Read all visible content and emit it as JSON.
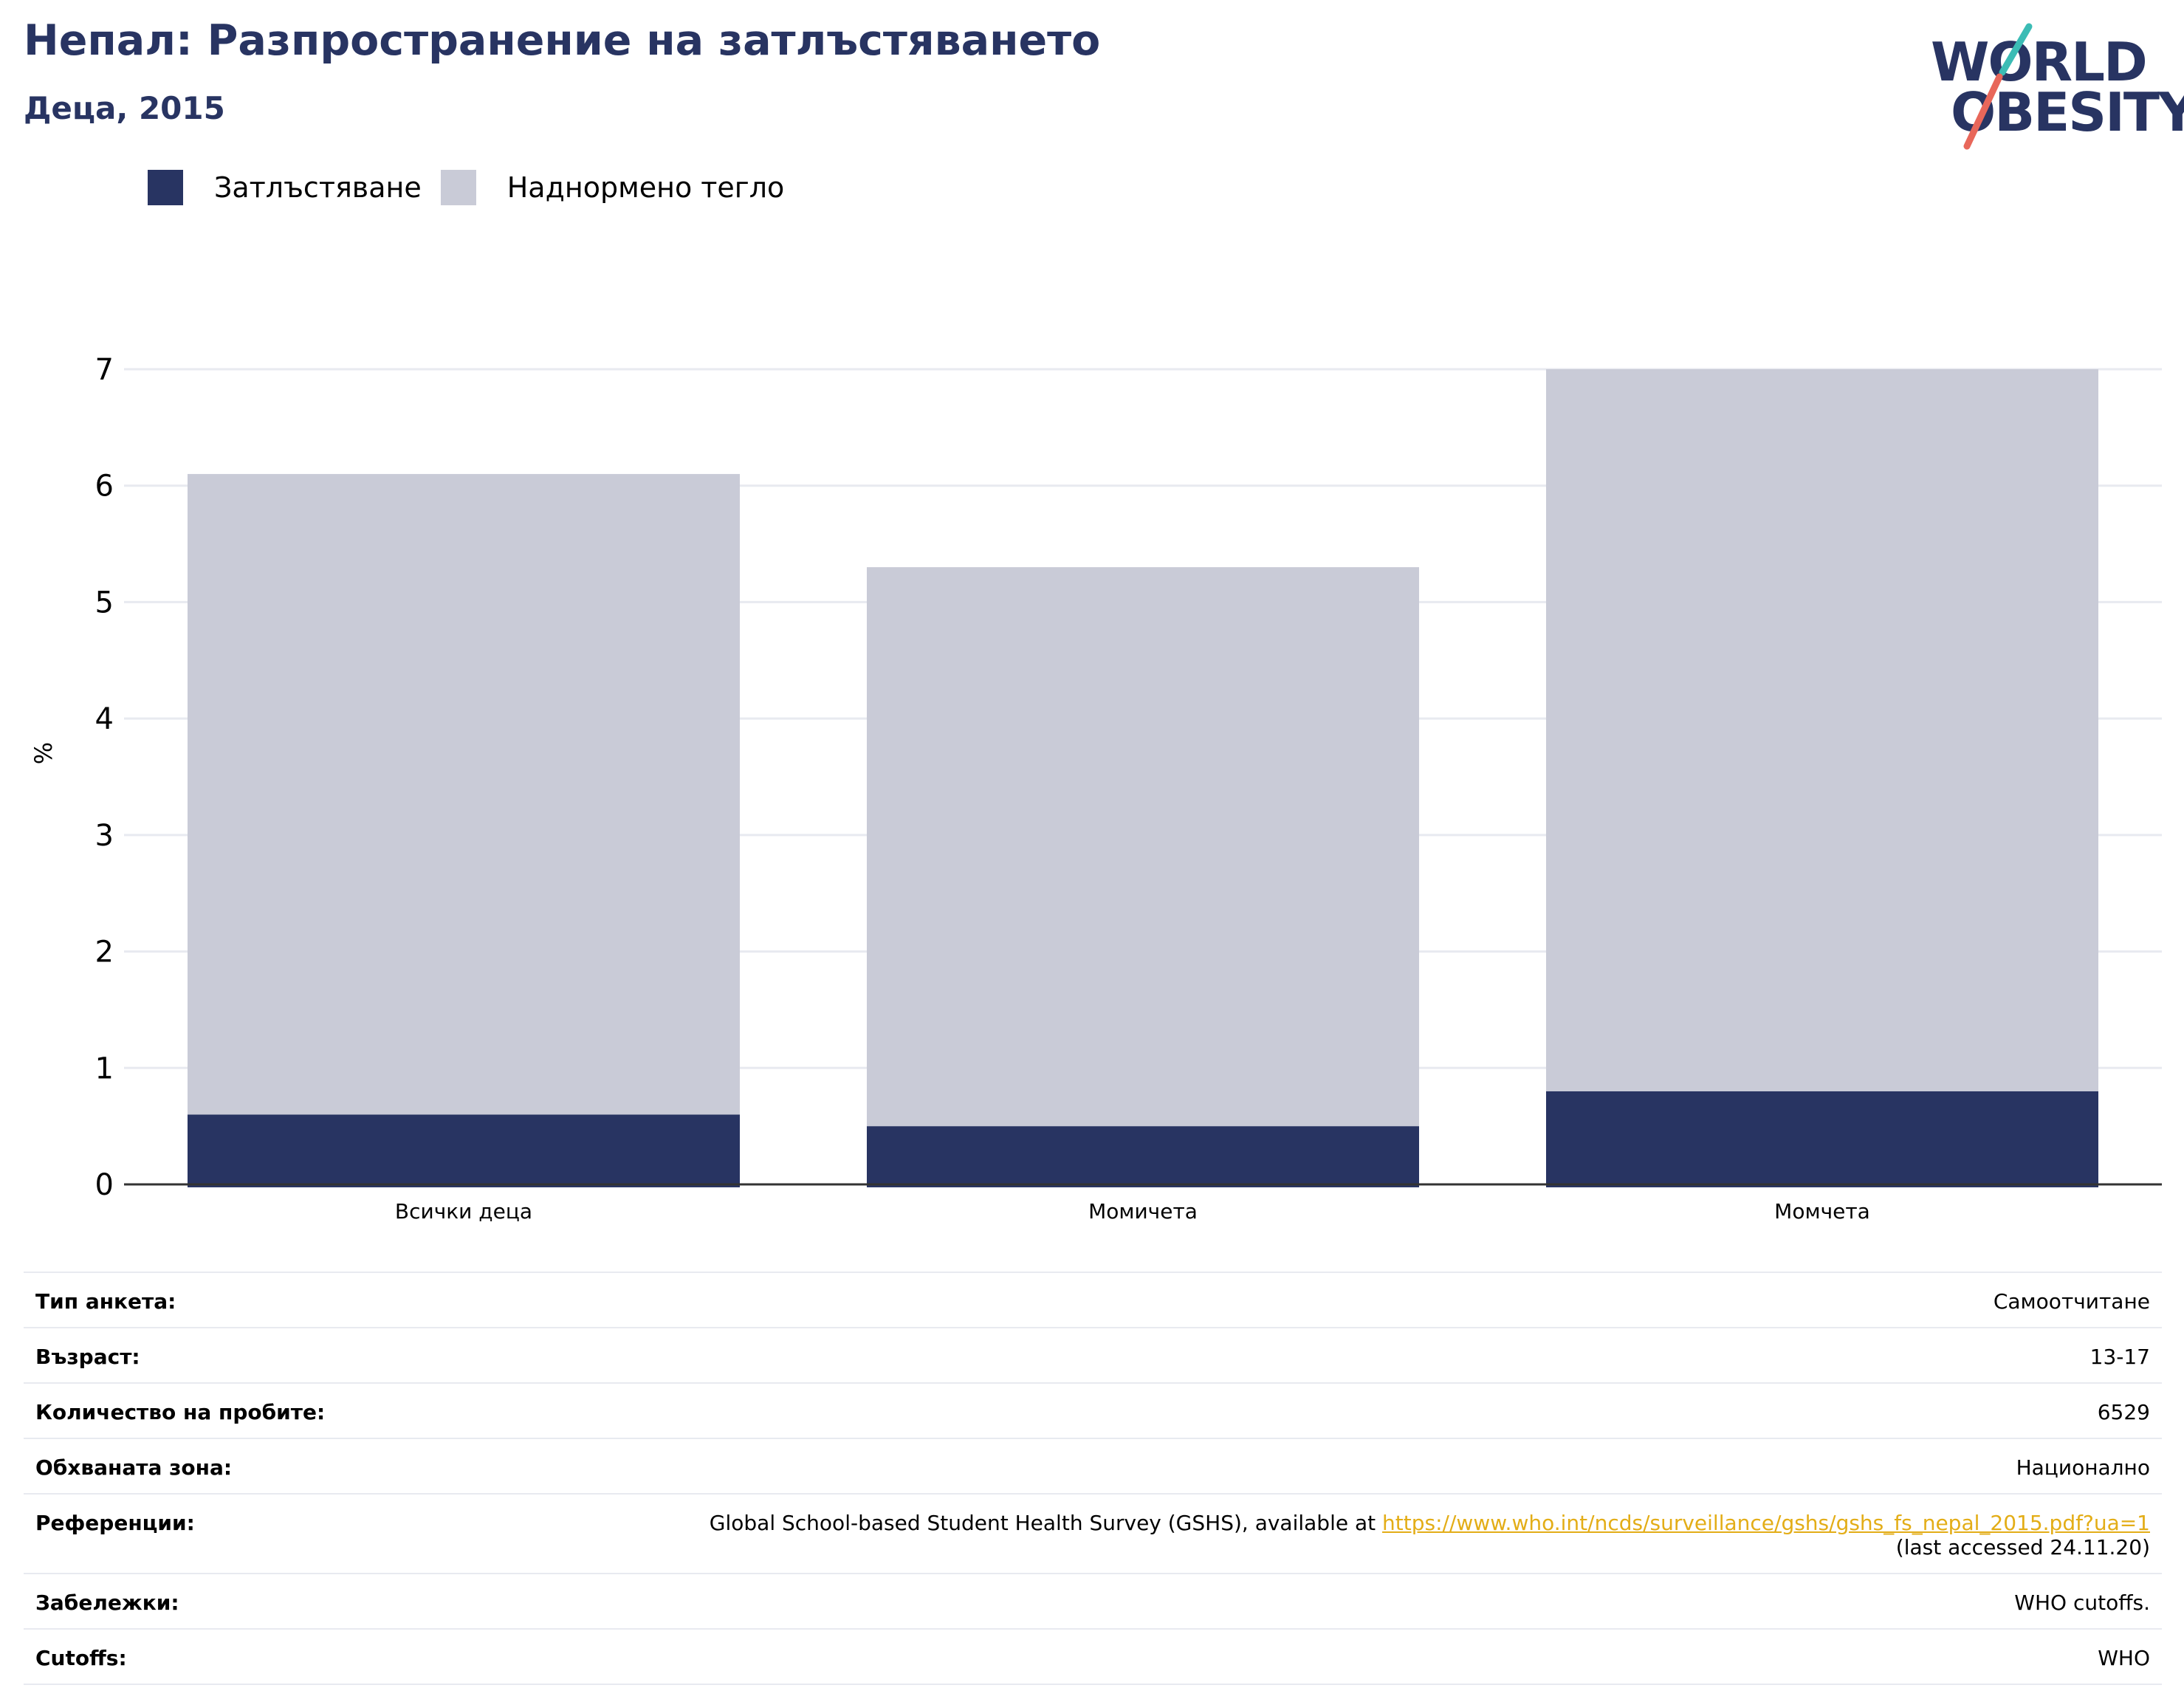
{
  "header": {
    "title": "Непал: Разпространение на затлъстяването",
    "subtitle": "Деца, 2015"
  },
  "logo": {
    "line1": "WORLD",
    "line2": "OBESITY",
    "accent_teal": "#3bbcb5",
    "accent_red": "#e8675a"
  },
  "colors": {
    "obesity": "#283462",
    "overweight": "#c9cbd7",
    "grid": "#e8eaf0",
    "axis": "#333333"
  },
  "chart_data": {
    "type": "bar",
    "stacked": true,
    "categories": [
      "Всички деца",
      "Момичета",
      "Момчета"
    ],
    "series": [
      {
        "name": "Затлъстяване",
        "values": [
          0.6,
          0.5,
          0.8
        ]
      },
      {
        "name": "Наднормено тегло",
        "values": [
          5.5,
          4.8,
          6.2
        ]
      }
    ],
    "ylabel": "%",
    "ylim": [
      0,
      7
    ],
    "yticks": [
      0,
      1,
      2,
      3,
      4,
      5,
      6,
      7
    ],
    "grid": true,
    "legend": "top-left"
  },
  "info": {
    "survey_type": {
      "label": "Тип анкета:",
      "value": "Самоотчитане"
    },
    "age": {
      "label": "Възраст:",
      "value": "13-17"
    },
    "sample_size": {
      "label": "Количество на пробите:",
      "value": "6529"
    },
    "area": {
      "label": "Обхваната зона:",
      "value": "Национално"
    },
    "references": {
      "label": "Референции:",
      "text": "Global School-based Student Health Survey (GSHS), available at",
      "link": "https://www.who.int/ncds/surveillance/gshs/gshs_fs_nepal_2015.pdf?ua=1",
      "accessed": "(last accessed 24.11.20)"
    },
    "notes": {
      "label": "Забележки:",
      "value": "WHO cutoffs."
    },
    "cutoffs": {
      "label": "Cutoffs:",
      "value": "WHO"
    }
  }
}
